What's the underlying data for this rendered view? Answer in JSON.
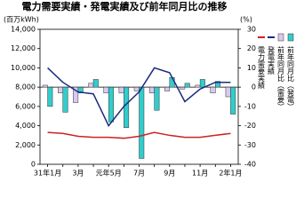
{
  "chart_data": {
    "type": "combo",
    "title": "電力需要実績・発電実績及び前年同月比の推移",
    "y_label": "(百万kWh)",
    "y2_label": "(%)",
    "categories": [
      "31年1月",
      null,
      "3月",
      null,
      "元年5月",
      null,
      "7月",
      null,
      "9月",
      null,
      "11月",
      null,
      "2年1月"
    ],
    "ylim": [
      0,
      14000
    ],
    "yticks": [
      0,
      {
        "value": 2000,
        "label": "2,000"
      },
      {
        "value": 4000,
        "label": "4,000"
      },
      {
        "value": 6000,
        "label": "6,000"
      },
      {
        "value": 8000,
        "label": "8,000"
      },
      {
        "value": 10000,
        "label": "10,000"
      },
      {
        "value": 12000,
        "label": "12,000"
      },
      {
        "value": 14000,
        "label": "14,000"
      }
    ],
    "y2lim": [
      -40,
      30
    ],
    "y2ticks": [
      -40,
      -30,
      -20,
      -10,
      0,
      10,
      20,
      30
    ],
    "series": [
      {
        "name": "電力需要実績",
        "type": "line",
        "color": "#cc2222",
        "values": [
          3300,
          3200,
          2900,
          2800,
          2800,
          2700,
          2900,
          3300,
          3000,
          2800,
          2800,
          3000,
          3200
        ]
      },
      {
        "name": "発電実績",
        "type": "line",
        "color": "#1a2a80",
        "values": [
          10000,
          8500,
          7500,
          7300,
          4000,
          6000,
          7500,
          10000,
          9500,
          6500,
          7800,
          8500,
          8500
        ]
      },
      {
        "name": "前年同月比（需要）",
        "type": "bar",
        "axis": "y2",
        "color": "#d9c8f0",
        "values": [
          1,
          -3,
          -8,
          2,
          -3,
          -3,
          -2,
          -3,
          -2,
          -1,
          1,
          -3,
          -5
        ]
      },
      {
        "name": "前年同月比（発電）",
        "type": "bar",
        "axis": "y2",
        "color": "#33cccc",
        "values": [
          -10,
          -13,
          -3,
          4,
          -18,
          -21,
          -37,
          -12,
          5,
          2,
          4,
          3,
          -14
        ]
      }
    ]
  }
}
